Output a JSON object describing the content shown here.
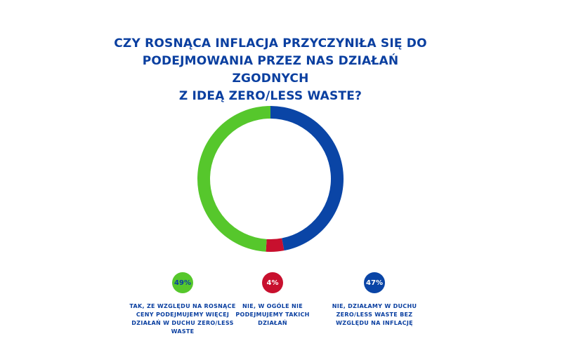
{
  "title_lines": [
    "CZY ROSNĄCA INFLACJA PRZYCZYNIŁA SIĘ DO",
    "PODEJMOWANIA PRZEZ NAS DZIAŁAŃ ZGODNYCH",
    "Z IDEĄ ZERO/LESS WASTE?"
  ],
  "colors": {
    "title": "#0a3fa0",
    "green": "#56c72c",
    "red": "#c8102e",
    "blue": "#0a45a6",
    "background": "#ffffff"
  },
  "chart_data": {
    "type": "pie",
    "variant": "donut",
    "title": "CZY ROSNĄCA INFLACJA PRZYCZYNIŁA SIĘ DO PODEJMOWANIA PRZEZ NAS DZIAŁAŃ ZGODNYCH Z IDEĄ ZERO/LESS WASTE?",
    "categories": [
      "TAK, ZE WZGLĘDU NA ROSNĄCE CENY PODEJMUJEMY WIĘCEJ DZIAŁAŃ W DUCHU ZERO/LESS WASTE",
      "NIE, W OGÓLE NIE PODEJMUJEMY TAKICH DZIAŁAŃ",
      "NIE, DZIAŁAMY W DUCHU ZERO/LESS WASTE BEZ WZGLĘDU NA INFLACJĘ"
    ],
    "values": [
      49,
      4,
      47
    ],
    "labels": [
      "49%",
      "4%",
      "47%"
    ],
    "slice_colors": [
      "#56c72c",
      "#c8102e",
      "#0a45a6"
    ],
    "legend_position": "bottom"
  },
  "legend": [
    {
      "badge": "49%",
      "lines": [
        "TAK, ZE WZGLĘDU NA ROSNĄCE",
        "CENY PODEJMUJEMY WIĘCEJ",
        "DZIAŁAŃ W DUCHU ZERO/LESS",
        "WASTE"
      ]
    },
    {
      "badge": "4%",
      "lines": [
        "NIE, W OGÓLE NIE",
        "PODEJMUJEMY TAKICH",
        "DZIAŁAŃ"
      ]
    },
    {
      "badge": "47%",
      "lines": [
        "NIE, DZIAŁAMY W DUCHU",
        "ZERO/LESS WASTE BEZ",
        "WZGLĘDU NA INFLACJĘ"
      ]
    }
  ]
}
